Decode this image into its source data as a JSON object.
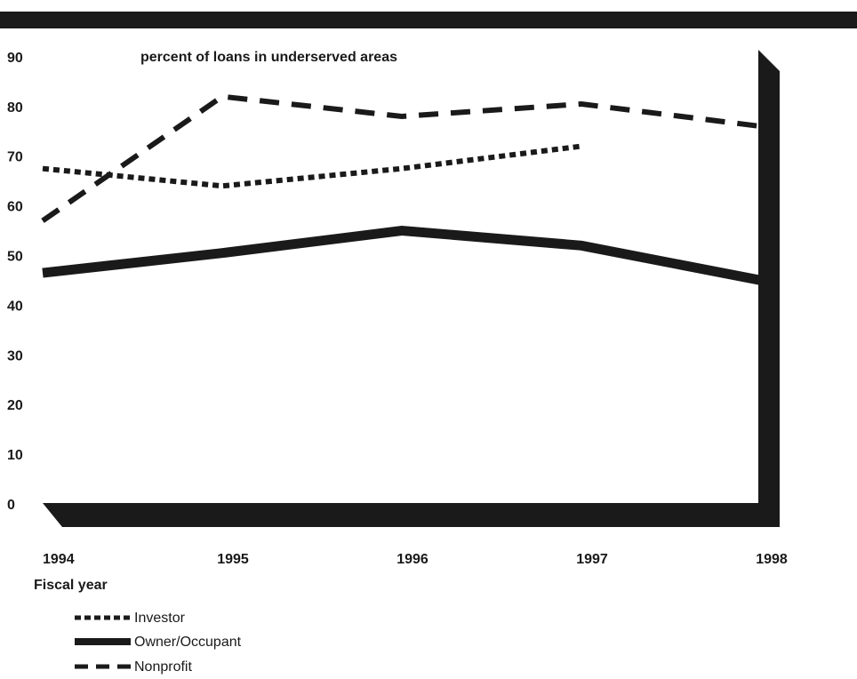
{
  "chart_data": {
    "type": "line",
    "title": "percent of loans in underserved areas",
    "xlabel": "Fiscal year",
    "ylabel": "",
    "categories": [
      "1994",
      "1995",
      "1996",
      "1997",
      "1998"
    ],
    "y_ticks": [
      "0",
      "10",
      "20",
      "30",
      "40",
      "50",
      "60",
      "70",
      "80",
      "90"
    ],
    "ylim": [
      0,
      90
    ],
    "grid": false,
    "legend_position": "bottom-left",
    "series": [
      {
        "name": "Investor",
        "style": "dotted",
        "values": [
          67.5,
          64,
          67.5,
          72,
          null
        ]
      },
      {
        "name": "Owner/Occupant",
        "style": "solid",
        "values": [
          46.5,
          50.5,
          55,
          52,
          45
        ]
      },
      {
        "name": "Nonprofit",
        "style": "dashed",
        "values": [
          57,
          82,
          78,
          80.5,
          76
        ]
      }
    ],
    "colors": {
      "ink": "#1a1a1a",
      "background": "#ffffff"
    }
  }
}
